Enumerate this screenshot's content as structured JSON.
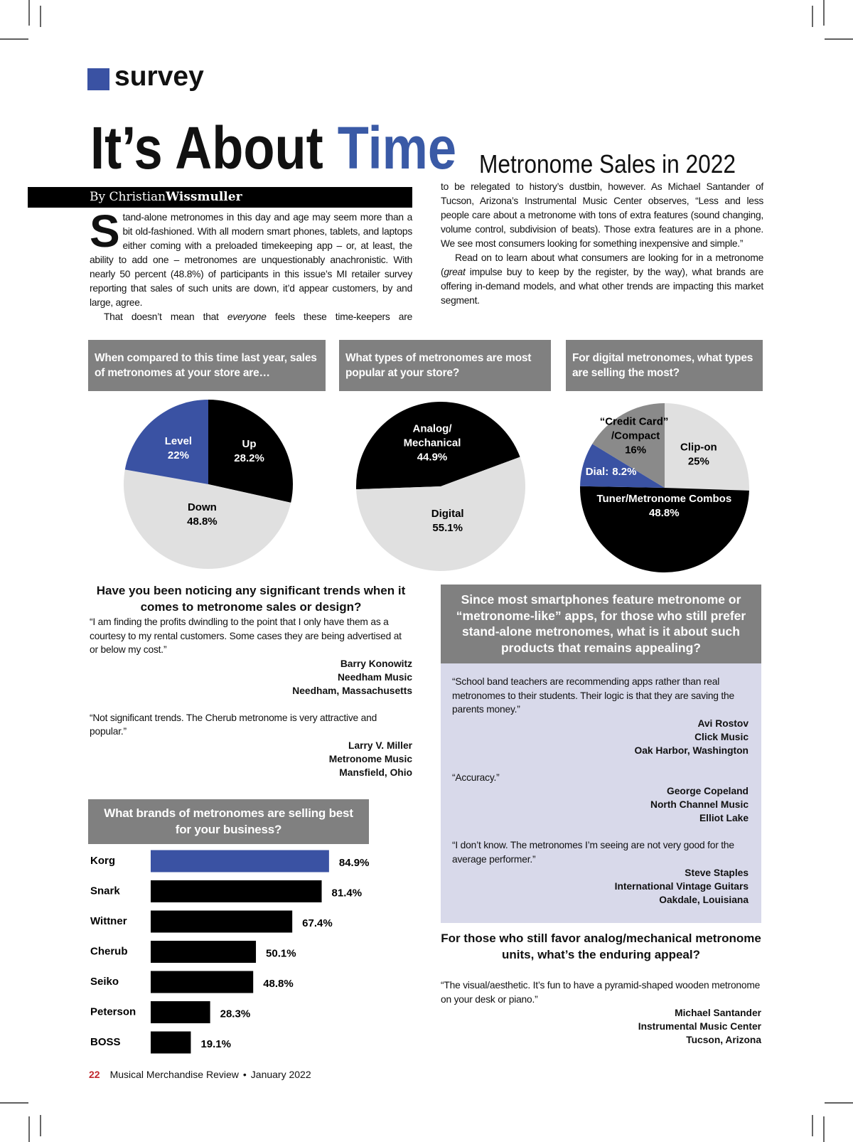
{
  "header": {
    "section": "survey",
    "title_start": "It’s About",
    "title_highlight": "Time",
    "subtitle": "Metronome Sales in 2022"
  },
  "byline": {
    "prefix": "By Christian",
    "name": "Wissmuller"
  },
  "article": {
    "drop_cap": "S",
    "left_column": [
      [
        "tand-alone metronomes in this day and age may seem more than a bit old-fashioned. With all modern smart phones, tablets, and laptops either coming with a preloaded timekeeping app – or, at least, the ability to add one – metronomes are unquestionably anachronistic. With nearly 50 percent (48.8%) of participants in this issue’s MI retailer survey reporting that sales of such units are down, it’d appear customers, by and large, agree."
      ],
      [
        "That doesn’t mean that ",
        "everyone",
        " feels these time-keepers are"
      ]
    ],
    "right_column": [
      [
        "to be relegated to history’s dustbin, however. As Michael Santander of Tucson, Arizona’s Instrumental Music Center observes, “Less and less people care about a metronome with tons of extra features (sound changing, volume control, subdivision of beats). Those extra features are in a phone. We see most consumers looking for something inexpensive and simple.”"
      ],
      [
        "Read on to learn about what consumers are looking for in a metronome (",
        "great",
        " impulse buy to keep by the register, by the way), what brands are offering in-demand models, and what other trends are impacting this market segment."
      ]
    ]
  },
  "chart_data": [
    {
      "type": "pie",
      "title": "When compared to this time last year, sales of metronomes at your store are…",
      "categories": [
        "Up",
        "Down",
        "Level"
      ],
      "values": [
        28.2,
        48.8,
        22
      ],
      "value_labels": [
        "28.2%",
        "48.8%",
        "22%"
      ],
      "colors": [
        "#000000",
        "#e0e0e0",
        "#3a52a3"
      ]
    },
    {
      "type": "pie",
      "title": "What types of metronomes are most popular at your store?",
      "categories": [
        "Analog/Mechanical",
        "Digital"
      ],
      "values": [
        44.9,
        55.1
      ],
      "value_labels": [
        "44.9%",
        "55.1%"
      ],
      "colors": [
        "#000000",
        "#e0e0e0"
      ]
    },
    {
      "type": "pie",
      "title": "For digital metronomes, what types are selling the most?",
      "categories": [
        "Clip-on",
        "Tuner/Metronome Combos",
        "Dial:",
        "“Credit Card” /Compact"
      ],
      "values": [
        25,
        48.8,
        8.2,
        16
      ],
      "value_labels": [
        "25%",
        "48.8%",
        "8.2%",
        "16%"
      ],
      "colors": [
        "#e0e0e0",
        "#000000",
        "#3a52a3",
        "#8a8a8a"
      ]
    },
    {
      "type": "hbar",
      "title": "What brands of metronomes are selling best for your business?",
      "categories": [
        "Korg",
        "Snark",
        "Wittner",
        "Cherub",
        "Seiko",
        "Peterson",
        "BOSS"
      ],
      "values": [
        84.9,
        81.4,
        67.4,
        50.1,
        48.8,
        28.3,
        19.1
      ],
      "value_labels": [
        "84.9%",
        "81.4%",
        "67.4%",
        "50.1%",
        "48.8%",
        "28.3%",
        "19.1%"
      ],
      "colors": [
        "#3a52a3",
        "#000000",
        "#000000",
        "#000000",
        "#000000",
        "#000000",
        "#000000"
      ]
    }
  ],
  "qa": [
    {
      "question": "Have you been noticing any significant trends when it comes to metronome sales or design?",
      "answers": [
        {
          "quote": "“I am finding the profits dwindling to the point that I only have them as a courtesy to my rental customers. Some cases they are being advertised at or below my cost.”",
          "name": "Barry Konowitz",
          "store": "Needham Music",
          "location": "Needham, Massachusetts"
        },
        {
          "quote": "“Not significant trends. The Cherub metronome is very attractive and popular.”",
          "name": "Larry V. Miller",
          "store": "Metronome Music",
          "location": "Mansfield, Ohio"
        }
      ]
    },
    {
      "question": "Since most smartphones feature metronome or “metronome-like” apps, for those who still prefer stand-alone metronomes, what is it about such products that remains appealing?",
      "answers": [
        {
          "quote": "“School band teachers are recommending apps rather than real metronomes to their students. Their logic is that they are saving the parents money.”",
          "name": "Avi Rostov",
          "store": "Click Music",
          "location": "Oak Harbor, Washington"
        },
        {
          "quote": "“Accuracy.”",
          "name": "George Copeland",
          "store": "North Channel Music",
          "location": "Elliot Lake"
        },
        {
          "quote": "“I don’t know. The metronomes I’m seeing are not very good for the average performer.”",
          "name": "Steve Staples",
          "store": "International Vintage Guitars",
          "location": "Oakdale, Louisiana"
        }
      ]
    },
    {
      "question": "For those who still favor analog/mechanical metronome units, what’s the enduring appeal?",
      "answers": [
        {
          "quote": "“The visual/aesthetic. It’s fun to have a pyramid-shaped wooden metronome on your desk or piano.”",
          "name": "Michael Santander",
          "store": "Instrumental Music Center",
          "location": "Tucson, Arizona"
        }
      ]
    }
  ],
  "footer": {
    "page": "22",
    "publication": "Musical Merchandise Review",
    "separator": "•",
    "date": "January 2022"
  }
}
